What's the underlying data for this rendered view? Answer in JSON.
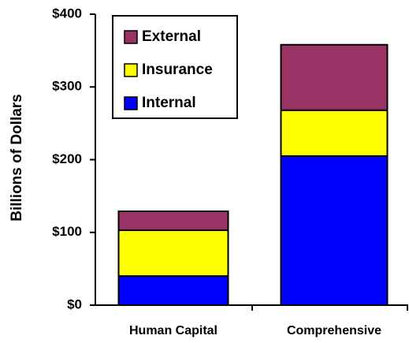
{
  "chart_data": {
    "type": "stacked-bar",
    "y_label": "Billions of Dollars",
    "categories": [
      "Human Capital",
      "Comprehensive"
    ],
    "series": [
      {
        "name": "Internal",
        "color": "#0000ff",
        "values": [
          40,
          205
        ]
      },
      {
        "name": "Insurance",
        "color": "#ffff00",
        "values": [
          63,
          63
        ]
      },
      {
        "name": "External",
        "color": "#993366",
        "values": [
          26,
          90
        ]
      }
    ],
    "ylim": [
      0,
      400
    ],
    "yticks": [
      {
        "value": 0,
        "label": "$0"
      },
      {
        "value": 100,
        "label": "$100"
      },
      {
        "value": 200,
        "label": "$200"
      },
      {
        "value": 300,
        "label": "$300"
      },
      {
        "value": 400,
        "label": "$400"
      }
    ],
    "legend": "upper left"
  }
}
